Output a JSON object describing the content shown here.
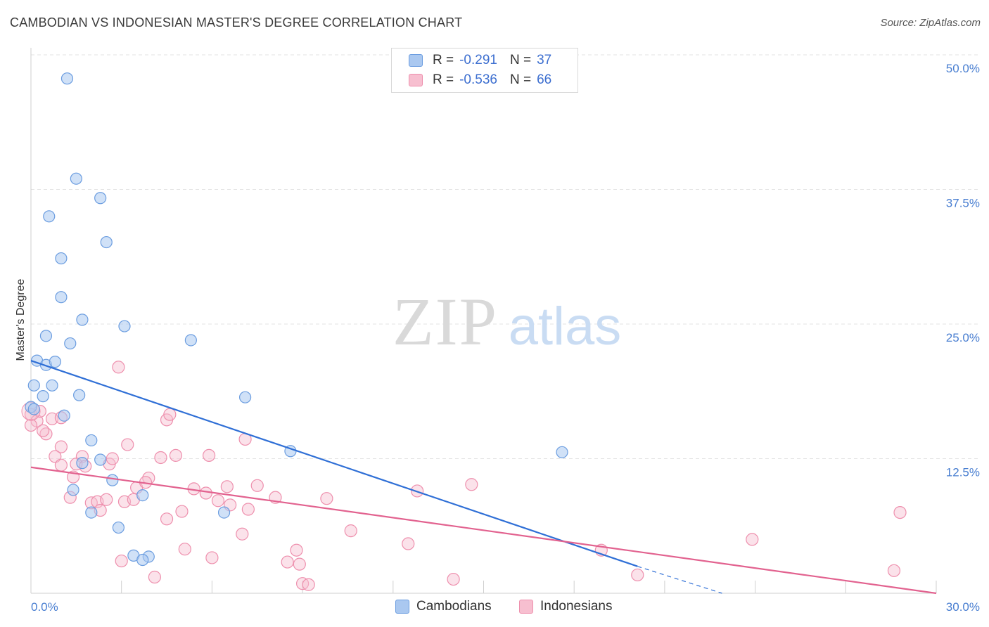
{
  "title": "CAMBODIAN VS INDONESIAN MASTER'S DEGREE CORRELATION CHART",
  "source": "Source: ZipAtlas.com",
  "watermark": {
    "zip": "ZIP",
    "atlas": "atlas"
  },
  "legend": {
    "r_label": "R =",
    "n_label": "N =",
    "rows": [
      {
        "name": "Cambodians",
        "r": "-0.291",
        "n": "37"
      },
      {
        "name": "Indonesians",
        "r": "-0.536",
        "n": "66"
      }
    ]
  },
  "colors": {
    "cambodian_fill": "#aac8f0",
    "cambodian_stroke": "#6b9de0",
    "cambodian_line": "#2f6fd6",
    "indonesian_fill": "#f7bfd0",
    "indonesian_stroke": "#ee8fad",
    "indonesian_line": "#e2628f",
    "tick_text": "#4a7fd1",
    "grid": "#e3e3e3"
  },
  "chart_data": {
    "type": "scatter",
    "title": "CAMBODIAN VS INDONESIAN MASTER'S DEGREE CORRELATION CHART",
    "xlabel": "",
    "ylabel": "Master's Degree",
    "xlim": [
      0,
      30
    ],
    "ylim": [
      0,
      50
    ],
    "x_tick_labels": [
      "0.0%",
      "30.0%"
    ],
    "y_ticks": [
      12.5,
      25.0,
      37.5,
      50.0
    ],
    "y_tick_labels": [
      "12.5%",
      "25.0%",
      "37.5%",
      "50.0%"
    ],
    "grid": true,
    "series": [
      {
        "name": "Cambodians",
        "points": [
          [
            1.2,
            47.8
          ],
          [
            1.5,
            38.5
          ],
          [
            2.3,
            36.7
          ],
          [
            0.6,
            35.0
          ],
          [
            2.5,
            32.6
          ],
          [
            1.0,
            31.1
          ],
          [
            1.0,
            27.5
          ],
          [
            1.7,
            25.4
          ],
          [
            3.1,
            24.8
          ],
          [
            0.5,
            23.9
          ],
          [
            1.3,
            23.2
          ],
          [
            5.3,
            23.5
          ],
          [
            0.2,
            21.6
          ],
          [
            0.5,
            21.2
          ],
          [
            0.8,
            21.5
          ],
          [
            0.1,
            19.3
          ],
          [
            0.7,
            19.3
          ],
          [
            0.4,
            18.3
          ],
          [
            1.6,
            18.4
          ],
          [
            7.1,
            18.2
          ],
          [
            0.0,
            17.3
          ],
          [
            0.1,
            17.1
          ],
          [
            1.1,
            16.5
          ],
          [
            2.0,
            14.2
          ],
          [
            8.6,
            13.2
          ],
          [
            17.6,
            13.1
          ],
          [
            2.3,
            12.4
          ],
          [
            1.7,
            12.1
          ],
          [
            2.7,
            10.5
          ],
          [
            1.4,
            9.6
          ],
          [
            3.7,
            9.1
          ],
          [
            6.4,
            7.5
          ],
          [
            2.0,
            7.5
          ],
          [
            2.9,
            6.1
          ],
          [
            3.4,
            3.5
          ],
          [
            3.9,
            3.4
          ],
          [
            3.7,
            3.1
          ]
        ]
      },
      {
        "name": "Indonesians",
        "points": [
          [
            2.9,
            21.0
          ],
          [
            0.0,
            16.6
          ],
          [
            0.2,
            16.0
          ],
          [
            0.0,
            15.6
          ],
          [
            0.7,
            16.2
          ],
          [
            0.5,
            14.8
          ],
          [
            0.4,
            15.1
          ],
          [
            4.5,
            16.1
          ],
          [
            4.6,
            16.6
          ],
          [
            7.1,
            14.3
          ],
          [
            1.0,
            13.6
          ],
          [
            3.2,
            13.8
          ],
          [
            0.8,
            12.7
          ],
          [
            1.7,
            12.7
          ],
          [
            4.3,
            12.6
          ],
          [
            4.8,
            12.8
          ],
          [
            5.9,
            12.8
          ],
          [
            1.0,
            11.9
          ],
          [
            1.5,
            12.0
          ],
          [
            1.8,
            11.8
          ],
          [
            2.6,
            12.0
          ],
          [
            3.9,
            10.7
          ],
          [
            1.4,
            10.8
          ],
          [
            3.5,
            9.8
          ],
          [
            3.8,
            10.3
          ],
          [
            5.4,
            9.7
          ],
          [
            5.8,
            9.3
          ],
          [
            6.5,
            9.9
          ],
          [
            7.5,
            10.0
          ],
          [
            8.1,
            8.9
          ],
          [
            9.8,
            8.8
          ],
          [
            12.8,
            9.5
          ],
          [
            14.6,
            10.1
          ],
          [
            1.3,
            8.9
          ],
          [
            2.0,
            8.4
          ],
          [
            2.2,
            8.5
          ],
          [
            2.5,
            8.7
          ],
          [
            3.1,
            8.5
          ],
          [
            3.4,
            8.7
          ],
          [
            6.2,
            8.6
          ],
          [
            6.6,
            8.2
          ],
          [
            7.2,
            7.8
          ],
          [
            5.0,
            7.6
          ],
          [
            2.3,
            7.7
          ],
          [
            4.5,
            6.9
          ],
          [
            10.6,
            5.8
          ],
          [
            7.0,
            5.5
          ],
          [
            12.5,
            4.6
          ],
          [
            23.9,
            5.0
          ],
          [
            28.8,
            7.5
          ],
          [
            5.1,
            4.1
          ],
          [
            8.8,
            4.0
          ],
          [
            18.9,
            4.0
          ],
          [
            3.0,
            3.0
          ],
          [
            6.0,
            3.3
          ],
          [
            8.5,
            2.9
          ],
          [
            8.9,
            2.7
          ],
          [
            4.1,
            1.5
          ],
          [
            9.0,
            0.9
          ],
          [
            9.2,
            0.8
          ],
          [
            14.0,
            1.3
          ],
          [
            20.1,
            1.7
          ],
          [
            28.6,
            2.1
          ],
          [
            1.0,
            16.3
          ],
          [
            0.3,
            16.9
          ],
          [
            2.7,
            12.5
          ]
        ]
      }
    ],
    "trendlines": [
      {
        "series": "Cambodians",
        "x": [
          0.0,
          20.1
        ],
        "y": [
          21.6,
          2.5
        ],
        "dashed_to": [
          22.9,
          0.0
        ]
      },
      {
        "series": "Indonesians",
        "x": [
          0.0,
          30.0
        ],
        "y": [
          11.7,
          0.0
        ]
      }
    ]
  }
}
